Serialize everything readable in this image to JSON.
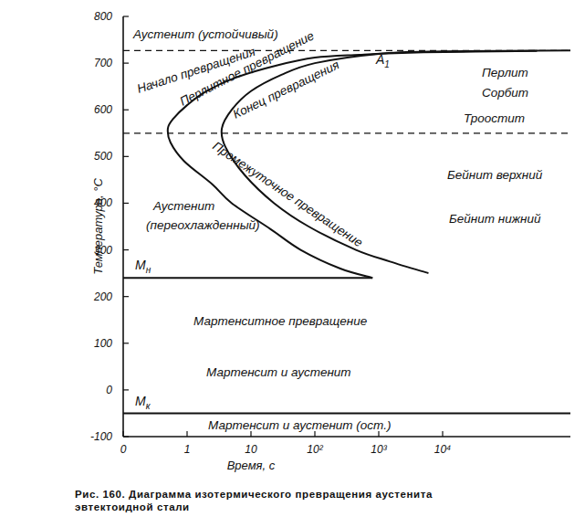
{
  "chart_data": {
    "type": "line",
    "log": "x",
    "grid": false,
    "x_label": "Время, с",
    "y_label": "Температура, °С",
    "caption": [
      "Рис. 160. Диаграмма изотермического превращения аустенита",
      "эвтектоидной стали"
    ],
    "xlim": [
      0.1,
      1000000
    ],
    "ylim": [
      -100,
      800
    ],
    "xticks": [
      {
        "value": 0.1,
        "label": "0"
      },
      1,
      10,
      {
        "value": 100,
        "label": "10²"
      },
      {
        "value": 1000,
        "label": "10³"
      },
      {
        "value": 10000,
        "label": "10⁴"
      }
    ],
    "yticks": [
      -100,
      0,
      100,
      200,
      300,
      400,
      500,
      600,
      700,
      800
    ],
    "series": [
      {
        "name": "Начало превращения",
        "color": "#111111",
        "line_style": "solid",
        "x": [
          300000,
          5000,
          500,
          100,
          25,
          6,
          2,
          1,
          0.6,
          0.5,
          0.55,
          0.9,
          2.5,
          5,
          20,
          60,
          250,
          800
        ],
        "values": [
          726,
          723,
          718,
          712,
          695,
          670,
          640,
          610,
          580,
          560,
          530,
          490,
          440,
          400,
          345,
          300,
          260,
          240
        ]
      },
      {
        "name": "Конец превращения",
        "color": "#111111",
        "line_style": "solid",
        "x": [
          1000000,
          10000,
          1000,
          100,
          30,
          10,
          5,
          3.5,
          4,
          8,
          23,
          80,
          440,
          1500,
          6000
        ],
        "values": [
          727,
          725,
          720,
          700,
          675,
          640,
          600,
          560,
          520,
          460,
          400,
          350,
          300,
          275,
          250
        ]
      }
    ],
    "reference_lines": [
      {
        "label": {
          "text": "A",
          "sub": "1"
        },
        "value": 727,
        "line_style": "dashed"
      },
      {
        "value": 550,
        "line_style": "dashed"
      },
      {
        "label": {
          "text": "M",
          "sub": "н"
        },
        "value": 240,
        "x_end": 800,
        "line_style": "solid"
      },
      {
        "label": {
          "text": "M",
          "sub": "к"
        },
        "value": -50,
        "line_style": "solid"
      }
    ],
    "annotations": [
      "Аустенит (устойчивый)",
      "Перлитное превращение",
      "Перлит",
      "Сорбит",
      "Троостит",
      "Бейнит верхний",
      "Бейнит нижний",
      "Промежуточное превращение",
      "Аустенит",
      "(переохлажденный)",
      "Мартенситное превращение",
      "Мартенсит и аустенит",
      "Мартенсит и аустенит (ост.)"
    ]
  }
}
